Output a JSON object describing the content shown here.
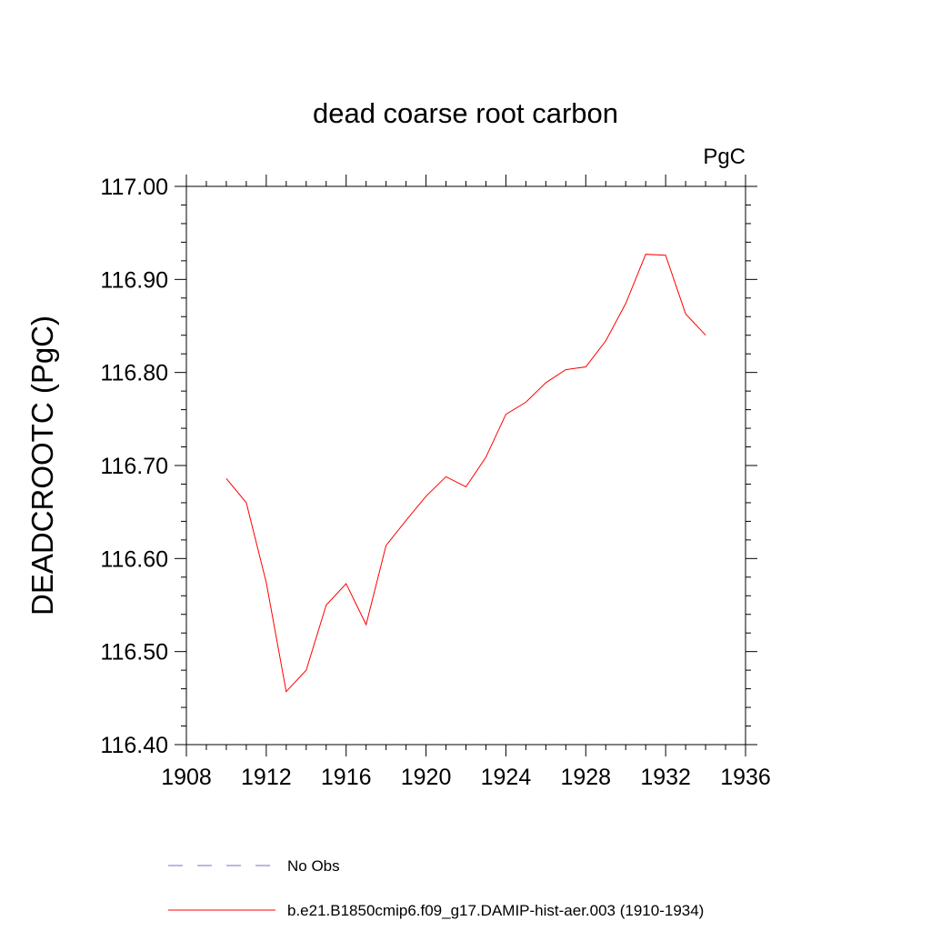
{
  "chart_data": {
    "type": "line",
    "title": "dead coarse root carbon",
    "units_label": "PgC",
    "ylabel": "DEADCROOTC  (PgC)",
    "xlabel": "",
    "xlim": [
      1908,
      1936
    ],
    "ylim": [
      116.4,
      117.0
    ],
    "x_ticks": [
      1908,
      1912,
      1916,
      1920,
      1924,
      1928,
      1932,
      1936
    ],
    "x_tick_labels": [
      "1908",
      "1912",
      "1916",
      "1920",
      "1924",
      "1928",
      "1932",
      "1936"
    ],
    "y_ticks": [
      116.4,
      116.5,
      116.6,
      116.7,
      116.8,
      116.9,
      117.0
    ],
    "y_tick_labels": [
      "116.40",
      "116.50",
      "116.60",
      "116.70",
      "116.80",
      "116.90",
      "117.00"
    ],
    "grid": false,
    "legend_position": "bottom",
    "series": [
      {
        "name": "b.e21.B1850cmip6.f09_g17.DAMIP-hist-aer.003 (1910-1934)",
        "color": "#ff0000",
        "dash": "solid",
        "x": [
          1910,
          1911,
          1912,
          1913,
          1914,
          1915,
          1916,
          1917,
          1918,
          1919,
          1920,
          1921,
          1922,
          1923,
          1924,
          1925,
          1926,
          1927,
          1928,
          1929,
          1930,
          1931,
          1932,
          1933,
          1934
        ],
        "y": [
          116.686,
          116.66,
          116.574,
          116.457,
          116.48,
          116.55,
          116.573,
          116.529,
          116.614,
          116.641,
          116.667,
          116.688,
          116.677,
          116.709,
          116.755,
          116.768,
          116.789,
          116.803,
          116.806,
          116.834,
          116.874,
          116.927,
          116.926,
          116.863,
          116.84
        ]
      }
    ],
    "legend_entries": [
      {
        "label": "No Obs",
        "color": "#7b6fc4",
        "dash": "dashed"
      },
      {
        "label": "b.e21.B1850cmip6.f09_g17.DAMIP-hist-aer.003 (1910-1934)",
        "color": "#ff0000",
        "dash": "solid"
      }
    ]
  }
}
